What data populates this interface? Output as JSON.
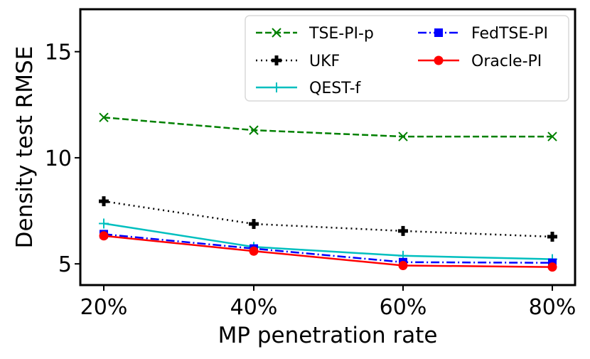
{
  "chart_data": {
    "type": "line",
    "title": "",
    "xlabel": "MP penetration rate",
    "ylabel": "Density test RMSE",
    "categories": [
      "20%",
      "40%",
      "60%",
      "80%"
    ],
    "yticks": [
      "5",
      "10",
      "15"
    ],
    "ytick_values": [
      5,
      10,
      15
    ],
    "ylim": [
      4.0,
      17.0
    ],
    "grid": false,
    "legend_position": "top-right",
    "series": [
      {
        "name": "TSE-PI-p",
        "values": [
          11.9,
          11.3,
          11.0,
          11.0
        ],
        "color": "#008000",
        "dash": "dashed",
        "marker": "x"
      },
      {
        "name": "UKF",
        "values": [
          7.95,
          6.88,
          6.55,
          6.28
        ],
        "color": "#000000",
        "dash": "dotted",
        "marker": "plus"
      },
      {
        "name": "QEST-f",
        "values": [
          6.9,
          5.8,
          5.38,
          5.22
        ],
        "color": "#00BFBF",
        "dash": "solid",
        "marker": "thin-plus"
      },
      {
        "name": "FedTSE-PI",
        "values": [
          6.4,
          5.72,
          5.08,
          5.05
        ],
        "color": "#0000FF",
        "dash": "dashdot",
        "marker": "square"
      },
      {
        "name": "Oracle-PI",
        "values": [
          6.32,
          5.6,
          4.92,
          4.85
        ],
        "color": "#FF0000",
        "dash": "solid",
        "marker": "circle"
      }
    ]
  }
}
